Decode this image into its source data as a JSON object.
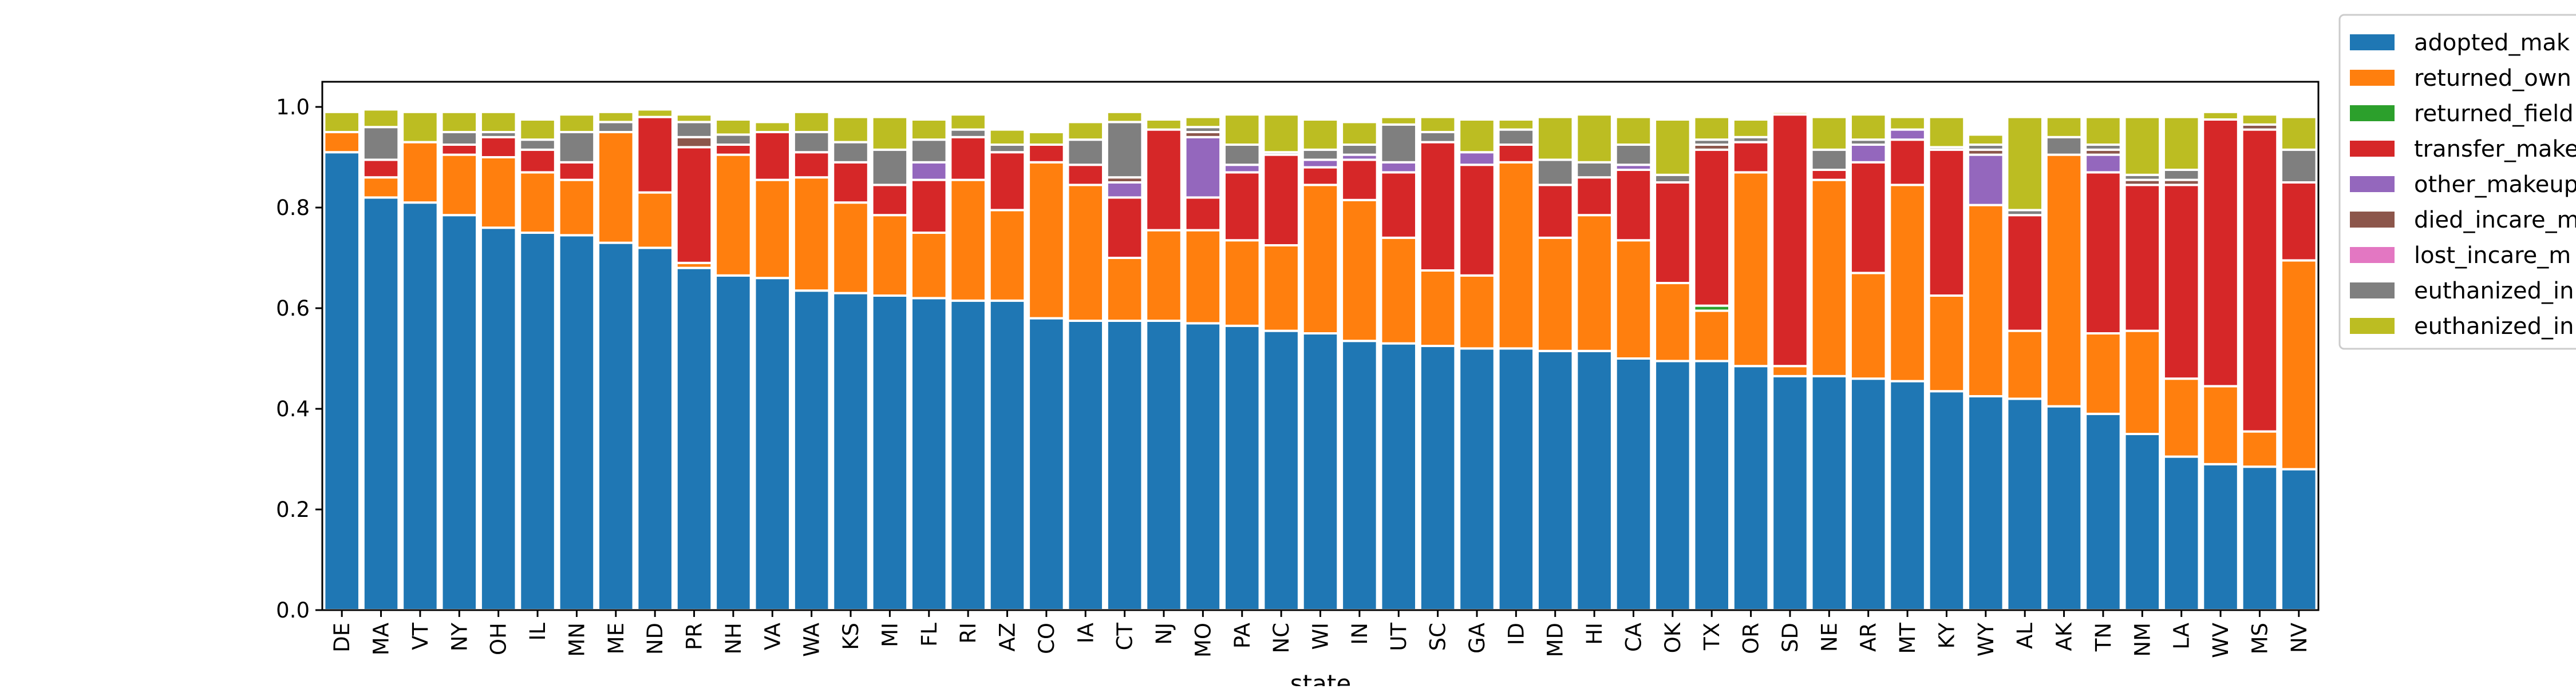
{
  "chart_data": {
    "type": "bar",
    "stacked": true,
    "title": "",
    "xlabel": "state",
    "ylabel": "",
    "ylim": [
      0,
      1.05
    ],
    "yticks": [
      "0.0",
      "0.2",
      "0.4",
      "0.6",
      "0.8",
      "1.0"
    ],
    "grid": false,
    "legend_position": "top-right (outside)",
    "categories": [
      "DE",
      "MA",
      "VT",
      "NY",
      "OH",
      "IL",
      "MN",
      "ME",
      "ND",
      "PR",
      "NH",
      "VA",
      "WA",
      "KS",
      "MI",
      "FL",
      "RI",
      "AZ",
      "CO",
      "IA",
      "CT",
      "NJ",
      "MO",
      "PA",
      "NC",
      "WI",
      "IN",
      "UT",
      "SC",
      "GA",
      "ID",
      "MD",
      "HI",
      "CA",
      "OK",
      "TX",
      "OR",
      "SD",
      "NE",
      "AR",
      "MT",
      "KY",
      "WY",
      "AL",
      "AK",
      "TN",
      "NM",
      "LA",
      "WV",
      "MS",
      "NV"
    ],
    "series": [
      {
        "name": "adopted_mak",
        "color": "#1f77b4",
        "values": [
          0.91,
          0.82,
          0.81,
          0.785,
          0.76,
          0.75,
          0.745,
          0.73,
          0.72,
          0.68,
          0.665,
          0.66,
          0.635,
          0.63,
          0.625,
          0.62,
          0.615,
          0.615,
          0.58,
          0.575,
          0.575,
          0.575,
          0.57,
          0.565,
          0.555,
          0.55,
          0.535,
          0.53,
          0.525,
          0.52,
          0.52,
          0.515,
          0.515,
          0.5,
          0.495,
          0.495,
          0.485,
          0.465,
          0.465,
          0.46,
          0.455,
          0.435,
          0.425,
          0.42,
          0.405,
          0.39,
          0.35,
          0.305,
          0.29,
          0.285,
          0.28
        ]
      },
      {
        "name": "returned_own",
        "color": "#ff7f0e",
        "values": [
          0.04,
          0.04,
          0.12,
          0.12,
          0.14,
          0.12,
          0.11,
          0.22,
          0.11,
          0.01,
          0.24,
          0.195,
          0.225,
          0.18,
          0.16,
          0.13,
          0.24,
          0.18,
          0.31,
          0.27,
          0.125,
          0.18,
          0.185,
          0.17,
          0.17,
          0.295,
          0.28,
          0.21,
          0.15,
          0.145,
          0.37,
          0.225,
          0.27,
          0.235,
          0.155,
          0.1,
          0.385,
          0.02,
          0.39,
          0.21,
          0.39,
          0.19,
          0.38,
          0.135,
          0.5,
          0.16,
          0.205,
          0.155,
          0.155,
          0.07,
          0.415
        ]
      },
      {
        "name": "returned_field",
        "color": "#2ca02c",
        "values": [
          0,
          0,
          0,
          0,
          0,
          0,
          0,
          0,
          0,
          0,
          0,
          0,
          0,
          0,
          0,
          0,
          0,
          0,
          0,
          0,
          0,
          0,
          0,
          0,
          0,
          0,
          0,
          0,
          0,
          0,
          0,
          0,
          0,
          0,
          0,
          0.01,
          0,
          0,
          0,
          0,
          0,
          0,
          0,
          0,
          0,
          0,
          0,
          0,
          0,
          0,
          0
        ]
      },
      {
        "name": "transfer_make",
        "color": "#d62728",
        "values": [
          0,
          0.035,
          0,
          0.02,
          0.04,
          0.045,
          0.035,
          0,
          0.15,
          0.23,
          0.02,
          0.095,
          0.05,
          0.08,
          0.06,
          0.105,
          0.085,
          0.115,
          0.035,
          0.04,
          0.12,
          0.2,
          0.065,
          0.135,
          0.18,
          0.035,
          0.08,
          0.13,
          0.255,
          0.22,
          0.035,
          0.105,
          0.075,
          0.14,
          0.2,
          0.31,
          0.06,
          0.5,
          0.02,
          0.22,
          0.09,
          0.29,
          0,
          0.23,
          0,
          0.32,
          0.29,
          0.385,
          0.53,
          0.6,
          0.155
        ]
      },
      {
        "name": "other_makeup",
        "color": "#9467bd",
        "values": [
          0,
          0,
          0,
          0,
          0,
          0,
          0,
          0,
          0,
          0,
          0,
          0,
          0,
          0,
          0,
          0.035,
          0,
          0,
          0,
          0,
          0.03,
          0,
          0.12,
          0.015,
          0,
          0.015,
          0.01,
          0.02,
          0,
          0.025,
          0,
          0,
          0,
          0.01,
          0,
          0,
          0,
          0,
          0,
          0.035,
          0.02,
          0,
          0.1,
          0,
          0,
          0.035,
          0,
          0,
          0,
          0,
          0
        ]
      },
      {
        "name": "died_incare_m",
        "color": "#8c564b",
        "values": [
          0,
          0,
          0,
          0,
          0,
          0,
          0,
          0,
          0,
          0.02,
          0,
          0,
          0,
          0,
          0,
          0,
          0,
          0,
          0,
          0,
          0.01,
          0,
          0.01,
          0,
          0,
          0,
          0,
          0,
          0,
          0,
          0,
          0,
          0,
          0,
          0,
          0.01,
          0,
          0,
          0,
          0,
          0,
          0,
          0.01,
          0,
          0,
          0.01,
          0.01,
          0.01,
          0,
          0.01,
          0
        ]
      },
      {
        "name": "lost_incare_m",
        "color": "#e377c2",
        "values": [
          0,
          0,
          0,
          0,
          0,
          0,
          0,
          0,
          0,
          0,
          0,
          0,
          0,
          0,
          0,
          0,
          0,
          0,
          0,
          0,
          0,
          0,
          0,
          0,
          0,
          0,
          0,
          0,
          0,
          0,
          0,
          0,
          0,
          0,
          0,
          0,
          0,
          0,
          0,
          0,
          0,
          0,
          0,
          0,
          0,
          0,
          0,
          0,
          0,
          0,
          0
        ]
      },
      {
        "name": "euthanized_in",
        "color": "#7f7f7f",
        "values": [
          0,
          0.065,
          0,
          0.025,
          0.01,
          0.02,
          0.06,
          0.02,
          0,
          0.03,
          0.02,
          0,
          0.04,
          0.04,
          0.07,
          0.045,
          0.015,
          0.015,
          0,
          0.05,
          0.11,
          0,
          0.01,
          0.04,
          0.005,
          0.02,
          0.02,
          0.075,
          0.02,
          0,
          0.03,
          0.05,
          0.03,
          0.04,
          0.015,
          0.01,
          0.01,
          0,
          0.04,
          0.01,
          0,
          0.005,
          0.01,
          0.01,
          0.035,
          0.01,
          0.01,
          0.02,
          0,
          0,
          0.065
        ]
      },
      {
        "name": "euthanized_in",
        "color": "#bcbd22",
        "values": [
          0.04,
          0.035,
          0.06,
          0.04,
          0.04,
          0.04,
          0.035,
          0.02,
          0.015,
          0.015,
          0.03,
          0.02,
          0.04,
          0.05,
          0.065,
          0.04,
          0.03,
          0.03,
          0.025,
          0.035,
          0.02,
          0.02,
          0.02,
          0.06,
          0.075,
          0.06,
          0.045,
          0.015,
          0.03,
          0.065,
          0.02,
          0.085,
          0.095,
          0.055,
          0.11,
          0.045,
          0.035,
          0.005,
          0.065,
          0.05,
          0.025,
          0.06,
          0.02,
          0.185,
          0.04,
          0.055,
          0.115,
          0.105,
          0.015,
          0.02,
          0.065
        ]
      }
    ]
  }
}
